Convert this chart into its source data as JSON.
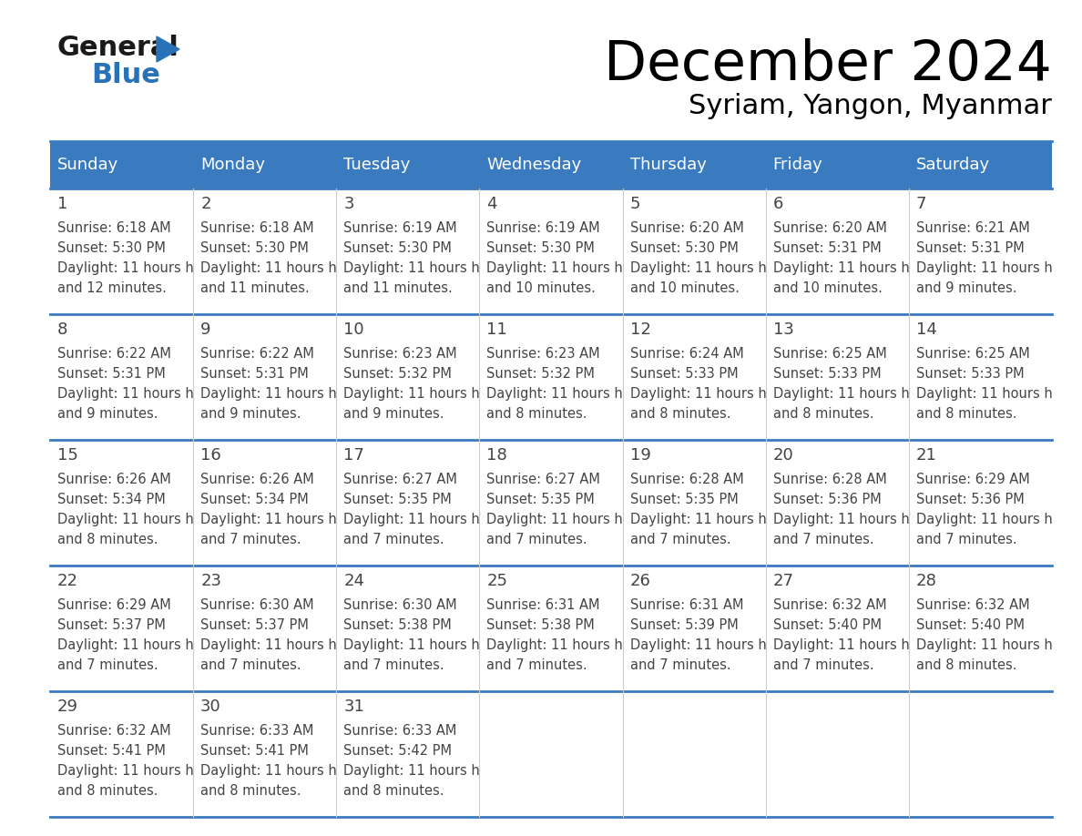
{
  "title": "December 2024",
  "subtitle": "Syriam, Yangon, Myanmar",
  "header_color": "#3a7abf",
  "header_text_color": "#ffffff",
  "day_names": [
    "Sunday",
    "Monday",
    "Tuesday",
    "Wednesday",
    "Thursday",
    "Friday",
    "Saturday"
  ],
  "separator_color": "#3a7abf",
  "cell_border_color": "#aaaaaa",
  "text_color": "#444444",
  "logo_general_color": "#1a1a1a",
  "logo_blue_color": "#2a72b8",
  "logo_triangle_color": "#2a72b8",
  "days": [
    {
      "day": 1,
      "col": 0,
      "row": 0,
      "sunrise": "6:18 AM",
      "sunset": "5:30 PM",
      "daylight": "11 hours and 12 minutes."
    },
    {
      "day": 2,
      "col": 1,
      "row": 0,
      "sunrise": "6:18 AM",
      "sunset": "5:30 PM",
      "daylight": "11 hours and 11 minutes."
    },
    {
      "day": 3,
      "col": 2,
      "row": 0,
      "sunrise": "6:19 AM",
      "sunset": "5:30 PM",
      "daylight": "11 hours and 11 minutes."
    },
    {
      "day": 4,
      "col": 3,
      "row": 0,
      "sunrise": "6:19 AM",
      "sunset": "5:30 PM",
      "daylight": "11 hours and 10 minutes."
    },
    {
      "day": 5,
      "col": 4,
      "row": 0,
      "sunrise": "6:20 AM",
      "sunset": "5:30 PM",
      "daylight": "11 hours and 10 minutes."
    },
    {
      "day": 6,
      "col": 5,
      "row": 0,
      "sunrise": "6:20 AM",
      "sunset": "5:31 PM",
      "daylight": "11 hours and 10 minutes."
    },
    {
      "day": 7,
      "col": 6,
      "row": 0,
      "sunrise": "6:21 AM",
      "sunset": "5:31 PM",
      "daylight": "11 hours and 9 minutes."
    },
    {
      "day": 8,
      "col": 0,
      "row": 1,
      "sunrise": "6:22 AM",
      "sunset": "5:31 PM",
      "daylight": "11 hours and 9 minutes."
    },
    {
      "day": 9,
      "col": 1,
      "row": 1,
      "sunrise": "6:22 AM",
      "sunset": "5:31 PM",
      "daylight": "11 hours and 9 minutes."
    },
    {
      "day": 10,
      "col": 2,
      "row": 1,
      "sunrise": "6:23 AM",
      "sunset": "5:32 PM",
      "daylight": "11 hours and 9 minutes."
    },
    {
      "day": 11,
      "col": 3,
      "row": 1,
      "sunrise": "6:23 AM",
      "sunset": "5:32 PM",
      "daylight": "11 hours and 8 minutes."
    },
    {
      "day": 12,
      "col": 4,
      "row": 1,
      "sunrise": "6:24 AM",
      "sunset": "5:33 PM",
      "daylight": "11 hours and 8 minutes."
    },
    {
      "day": 13,
      "col": 5,
      "row": 1,
      "sunrise": "6:25 AM",
      "sunset": "5:33 PM",
      "daylight": "11 hours and 8 minutes."
    },
    {
      "day": 14,
      "col": 6,
      "row": 1,
      "sunrise": "6:25 AM",
      "sunset": "5:33 PM",
      "daylight": "11 hours and 8 minutes."
    },
    {
      "day": 15,
      "col": 0,
      "row": 2,
      "sunrise": "6:26 AM",
      "sunset": "5:34 PM",
      "daylight": "11 hours and 8 minutes."
    },
    {
      "day": 16,
      "col": 1,
      "row": 2,
      "sunrise": "6:26 AM",
      "sunset": "5:34 PM",
      "daylight": "11 hours and 7 minutes."
    },
    {
      "day": 17,
      "col": 2,
      "row": 2,
      "sunrise": "6:27 AM",
      "sunset": "5:35 PM",
      "daylight": "11 hours and 7 minutes."
    },
    {
      "day": 18,
      "col": 3,
      "row": 2,
      "sunrise": "6:27 AM",
      "sunset": "5:35 PM",
      "daylight": "11 hours and 7 minutes."
    },
    {
      "day": 19,
      "col": 4,
      "row": 2,
      "sunrise": "6:28 AM",
      "sunset": "5:35 PM",
      "daylight": "11 hours and 7 minutes."
    },
    {
      "day": 20,
      "col": 5,
      "row": 2,
      "sunrise": "6:28 AM",
      "sunset": "5:36 PM",
      "daylight": "11 hours and 7 minutes."
    },
    {
      "day": 21,
      "col": 6,
      "row": 2,
      "sunrise": "6:29 AM",
      "sunset": "5:36 PM",
      "daylight": "11 hours and 7 minutes."
    },
    {
      "day": 22,
      "col": 0,
      "row": 3,
      "sunrise": "6:29 AM",
      "sunset": "5:37 PM",
      "daylight": "11 hours and 7 minutes."
    },
    {
      "day": 23,
      "col": 1,
      "row": 3,
      "sunrise": "6:30 AM",
      "sunset": "5:37 PM",
      "daylight": "11 hours and 7 minutes."
    },
    {
      "day": 24,
      "col": 2,
      "row": 3,
      "sunrise": "6:30 AM",
      "sunset": "5:38 PM",
      "daylight": "11 hours and 7 minutes."
    },
    {
      "day": 25,
      "col": 3,
      "row": 3,
      "sunrise": "6:31 AM",
      "sunset": "5:38 PM",
      "daylight": "11 hours and 7 minutes."
    },
    {
      "day": 26,
      "col": 4,
      "row": 3,
      "sunrise": "6:31 AM",
      "sunset": "5:39 PM",
      "daylight": "11 hours and 7 minutes."
    },
    {
      "day": 27,
      "col": 5,
      "row": 3,
      "sunrise": "6:32 AM",
      "sunset": "5:40 PM",
      "daylight": "11 hours and 7 minutes."
    },
    {
      "day": 28,
      "col": 6,
      "row": 3,
      "sunrise": "6:32 AM",
      "sunset": "5:40 PM",
      "daylight": "11 hours and 8 minutes."
    },
    {
      "day": 29,
      "col": 0,
      "row": 4,
      "sunrise": "6:32 AM",
      "sunset": "5:41 PM",
      "daylight": "11 hours and 8 minutes."
    },
    {
      "day": 30,
      "col": 1,
      "row": 4,
      "sunrise": "6:33 AM",
      "sunset": "5:41 PM",
      "daylight": "11 hours and 8 minutes."
    },
    {
      "day": 31,
      "col": 2,
      "row": 4,
      "sunrise": "6:33 AM",
      "sunset": "5:42 PM",
      "daylight": "11 hours and 8 minutes."
    }
  ]
}
